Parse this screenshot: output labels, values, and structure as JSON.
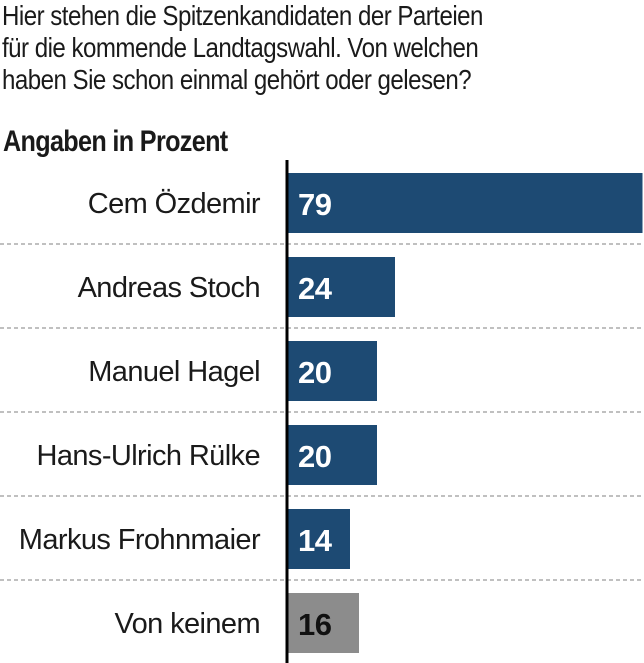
{
  "question_lines": [
    "Hier stehen die Spitzenkandidaten der Parteien",
    "für die kommende Landtagswahl. Von welchen",
    "haben Sie schon einmal gehört oder gelesen?"
  ],
  "subtitle": "Angaben in Prozent",
  "colors": {
    "bar": "#1d4a73",
    "bar_none": "#8c8c8c",
    "value_on_bar": "#ffffff",
    "value_on_none": "#111111",
    "axis": "#000000",
    "separator": "#9a9a9a"
  },
  "chart_data": {
    "type": "bar",
    "orientation": "horizontal",
    "categories": [
      "Cem Özdemir",
      "Andreas Stoch",
      "Manuel Hagel",
      "Hans-Ulrich Rülke",
      "Markus Frohnmaier",
      "Von keinem"
    ],
    "values": [
      79,
      24,
      20,
      20,
      14,
      16
    ],
    "value_labels": [
      "79",
      "24",
      "20",
      "20",
      "14",
      "16"
    ],
    "title": "",
    "xlabel": "",
    "ylabel": "",
    "grid": false,
    "legend": "none"
  }
}
